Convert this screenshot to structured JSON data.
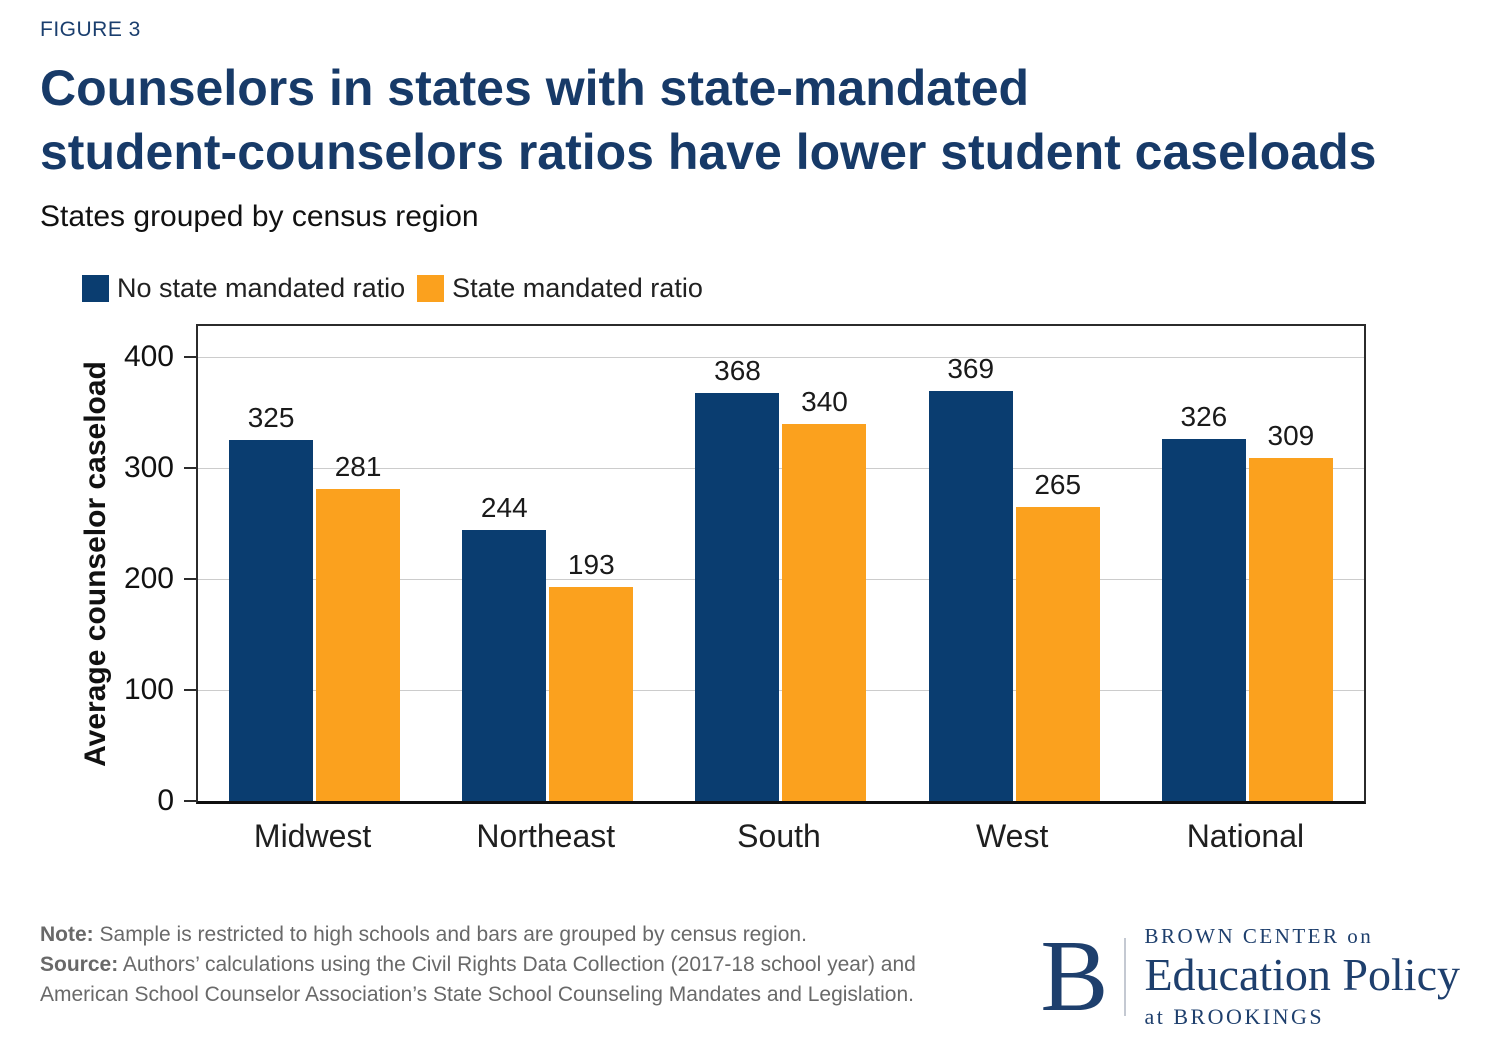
{
  "figure_label": "FIGURE 3",
  "title_line1": "Counselors in states with state-mandated",
  "title_line2": "student-counselors ratios have lower student caseloads",
  "subtitle": "States grouped by census region",
  "colors": {
    "navy": "#0a3d70",
    "orange": "#fba11e",
    "title_navy": "#173a68",
    "grid": "#cccccc",
    "note_gray": "#696969"
  },
  "legend": [
    {
      "label": "No state mandated ratio",
      "color": "#0a3d70"
    },
    {
      "label": "State mandated ratio",
      "color": "#fba11e"
    }
  ],
  "chart_data": {
    "type": "bar",
    "categories": [
      "Midwest",
      "Northeast",
      "South",
      "West",
      "National"
    ],
    "series": [
      {
        "name": "No state mandated ratio",
        "color": "#0a3d70",
        "values": [
          325,
          244,
          368,
          369,
          326
        ]
      },
      {
        "name": "State mandated ratio",
        "color": "#fba11e",
        "values": [
          281,
          193,
          340,
          265,
          309
        ]
      }
    ],
    "title": "Counselors in states with state-mandated student-counselors ratios have lower student caseloads",
    "xlabel": "",
    "ylabel": "Average counselor caseload",
    "ylim": [
      0,
      428
    ],
    "yticks": [
      0,
      100,
      200,
      300,
      400
    ],
    "grid": true,
    "legend_position": "top-left",
    "bar_value_labels": true
  },
  "note": {
    "note_label": "Note:",
    "note_text": " Sample is restricted to high schools and bars are grouped by census region.",
    "source_label": "Source:",
    "source_text": " Authors’ calculations using the Civil Rights Data Collection (2017-18 school year) and American School Counselor Association’s State School Counseling Mandates and Legislation."
  },
  "logo": {
    "letter": "B",
    "line1": "BROWN CENTER on",
    "line2": "Education Policy",
    "line3": "at BROOKINGS"
  }
}
